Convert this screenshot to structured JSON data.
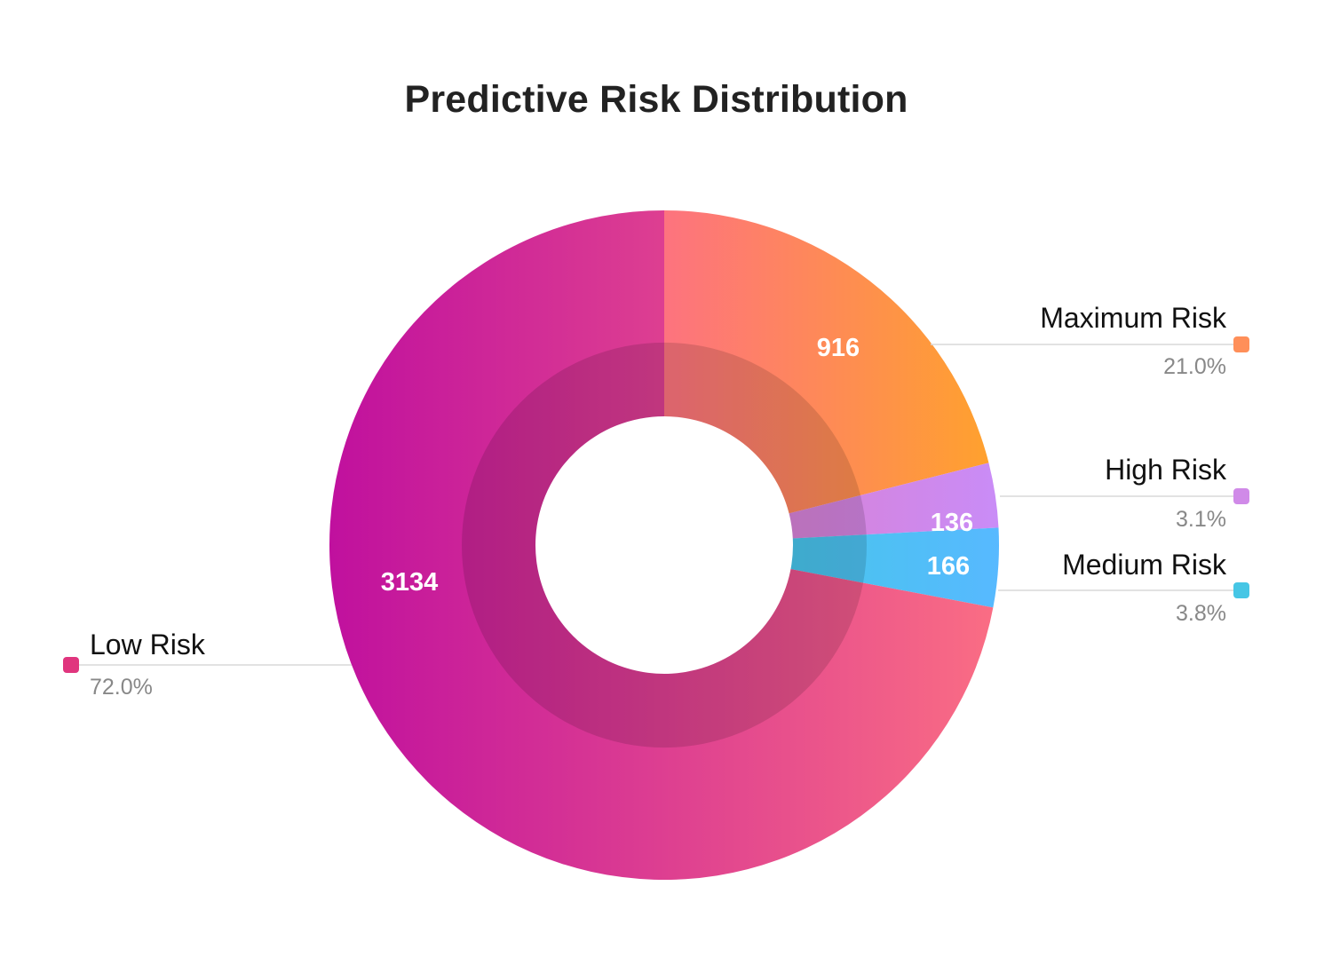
{
  "chart_data": {
    "type": "pie",
    "variant": "donut",
    "title": "Predictive Risk Distribution",
    "categories": [
      "Maximum Risk",
      "High Risk",
      "Medium Risk",
      "Low Risk"
    ],
    "values": [
      916,
      136,
      166,
      3134
    ],
    "percent_labels": [
      "21.0%",
      "3.1%",
      "3.8%",
      "72.0%"
    ],
    "colors": {
      "Maximum Risk": {
        "start": "#fd737f",
        "end": "#ffa12e",
        "swatch": "#ff8f59"
      },
      "High Risk": {
        "start": "#e07cc4",
        "end": "#c98cf7",
        "swatch": "#d08ae8"
      },
      "Medium Risk": {
        "start": "#3fcde0",
        "end": "#57b9ff",
        "swatch": "#46c6e5"
      },
      "Low Risk": {
        "start": "#c0109e",
        "end": "#fa6d84",
        "swatch": "#e0357e"
      }
    },
    "legend_placement": "outside, with leader lines",
    "grid": false
  }
}
